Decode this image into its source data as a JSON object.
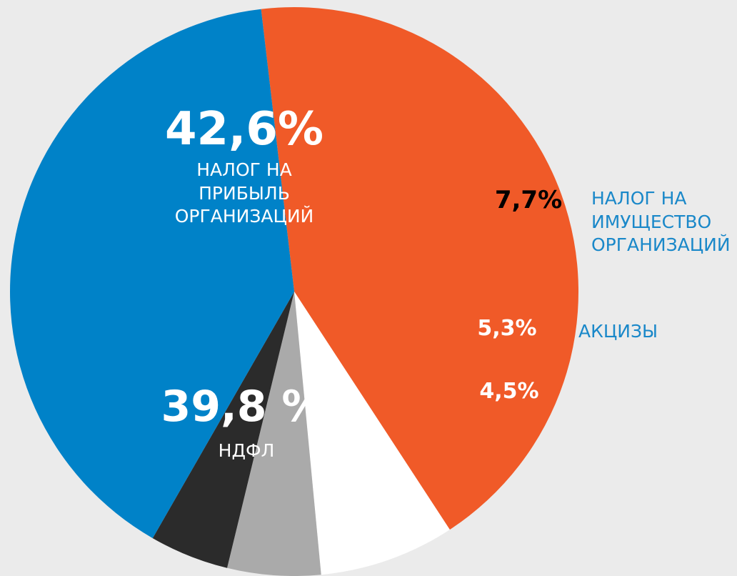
{
  "chart_data": {
    "type": "pie",
    "categories": [
      "НАЛОГ НА ПРИБЫЛЬ ОРГАНИЗАЦИЙ",
      "НАЛОГ НА ИМУЩЕСТВО ОРГАНИЗАЦИЙ",
      "АКЦИЗЫ",
      "4,5%",
      "НДФЛ"
    ],
    "values": [
      42.6,
      7.7,
      5.3,
      4.5,
      39.8
    ],
    "value_labels": [
      "42,6%",
      "7,7%",
      "5,3%",
      "4,5%",
      "39,8 %"
    ],
    "colors": [
      "#f05a28",
      "#ffffff",
      "#aaaaaa",
      "#2b2b2b",
      "#0082c8"
    ]
  }
}
